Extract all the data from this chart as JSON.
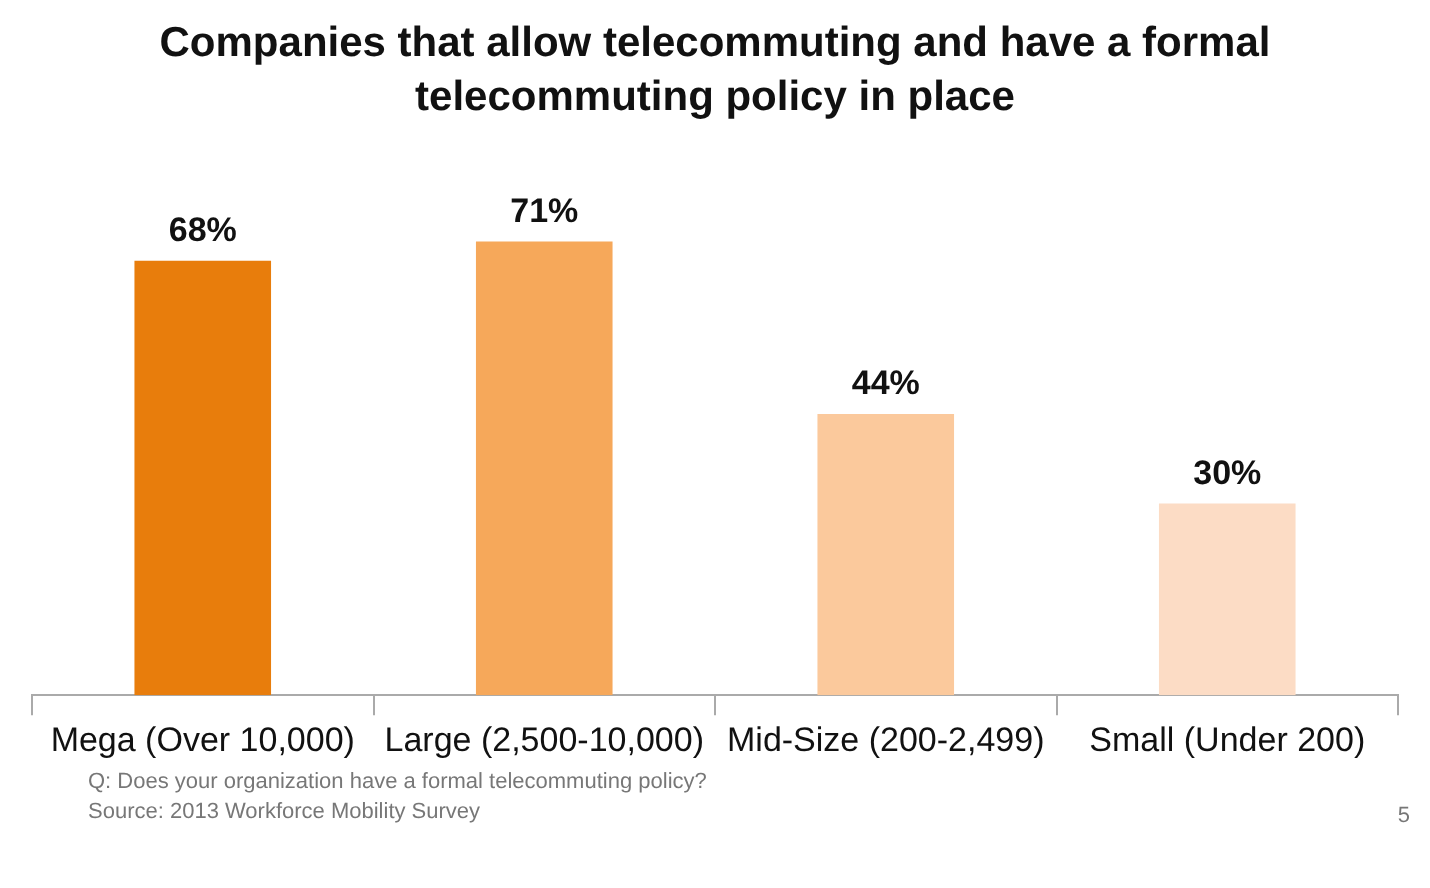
{
  "chart_data": {
    "type": "bar",
    "title": "Companies that allow telecommuting and have a formal telecommuting policy in place",
    "categories": [
      "Mega (Over 10,000)",
      "Large (2,500-10,000)",
      "Mid-Size (200-2,499)",
      "Small (Under 200)"
    ],
    "values": [
      68,
      71,
      44,
      30
    ],
    "colors": [
      "#e87d0c",
      "#f6a85a",
      "#fbc99c",
      "#fcdcc5"
    ],
    "value_labels": [
      "68%",
      "71%",
      "44%",
      "30%"
    ],
    "annotations": [
      "Q: Does your organization have a formal telecommuting policy?",
      "Source: 2013 Workforce Mobility Survey",
      "5"
    ]
  }
}
